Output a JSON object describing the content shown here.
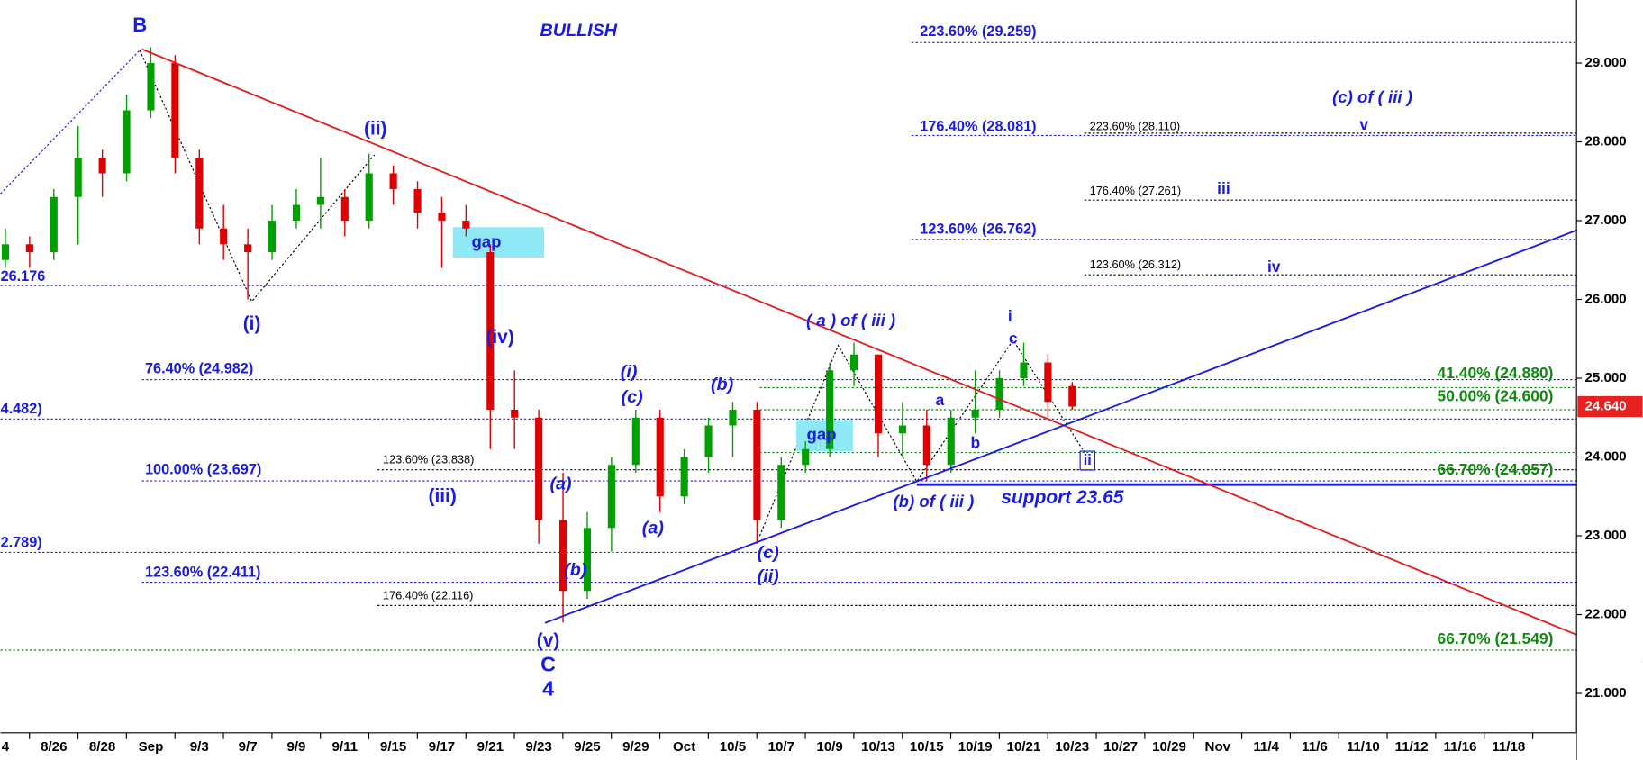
{
  "chart_data": {
    "type": "candlestick",
    "title": "BULLISH",
    "xticks": [
      {
        "value": 0,
        "label": "4"
      },
      {
        "value": 2,
        "label": "8/26"
      },
      {
        "value": 4,
        "label": "8/28"
      },
      {
        "value": 6,
        "label": "Sep"
      },
      {
        "value": 8,
        "label": "9/3"
      },
      {
        "value": 10,
        "label": "9/7"
      },
      {
        "value": 12,
        "label": "9/9"
      },
      {
        "value": 14,
        "label": "9/11"
      },
      {
        "value": 16,
        "label": "9/15"
      },
      {
        "value": 18,
        "label": "9/17"
      },
      {
        "value": 20,
        "label": "9/21"
      },
      {
        "value": 22,
        "label": "9/23"
      },
      {
        "value": 24,
        "label": "9/25"
      },
      {
        "value": 26,
        "label": "9/29"
      },
      {
        "value": 28,
        "label": "Oct"
      },
      {
        "value": 30,
        "label": "10/5"
      },
      {
        "value": 32,
        "label": "10/7"
      },
      {
        "value": 34,
        "label": "10/9"
      },
      {
        "value": 36,
        "label": "10/13"
      },
      {
        "value": 38,
        "label": "10/15"
      },
      {
        "value": 40,
        "label": "10/19"
      },
      {
        "value": 42,
        "label": "10/21"
      },
      {
        "value": 44,
        "label": "10/23"
      },
      {
        "value": 46,
        "label": "10/27"
      },
      {
        "value": 48,
        "label": "10/29"
      },
      {
        "value": 50,
        "label": "Nov"
      },
      {
        "value": 52,
        "label": "11/4"
      },
      {
        "value": 54,
        "label": "11/6"
      },
      {
        "value": 56,
        "label": "11/10"
      },
      {
        "value": 58,
        "label": "11/12"
      },
      {
        "value": 60,
        "label": "11/16"
      },
      {
        "value": 62,
        "label": "11/18"
      }
    ],
    "xlim": [
      -0.2,
      64.8
    ],
    "ylim": [
      20.5,
      29.8
    ],
    "yticks": [
      {
        "value": 21,
        "label": "21.000"
      },
      {
        "value": 22,
        "label": "22.000"
      },
      {
        "value": 23,
        "label": "23.000"
      },
      {
        "value": 24,
        "label": "24.000"
      },
      {
        "value": 25,
        "label": "25.000"
      },
      {
        "value": 26,
        "label": "26.000"
      },
      {
        "value": 27,
        "label": "27.000"
      },
      {
        "value": 28,
        "label": "28.000"
      },
      {
        "value": 29,
        "label": "29.000"
      }
    ],
    "up_color": "#00a000",
    "down_color": "#e00000",
    "ohlc": {
      "open": [
        26.5,
        26.7,
        26.6,
        27.3,
        27.8,
        27.6,
        28.4,
        29.0,
        27.8,
        26.9,
        26.7,
        26.6,
        27.0,
        27.2,
        27.3,
        27.0,
        27.6,
        27.4,
        27.1,
        27.0,
        26.6,
        24.6,
        24.5,
        23.2,
        22.3,
        23.1,
        23.9,
        24.5,
        23.5,
        24.0,
        24.4,
        24.6,
        23.2,
        23.9,
        24.1,
        25.1,
        25.3,
        24.3,
        24.4,
        23.9,
        24.5,
        24.6,
        25.0,
        25.2,
        24.9
      ],
      "high": [
        26.9,
        26.8,
        27.4,
        28.2,
        27.9,
        28.6,
        29.2,
        29.1,
        27.9,
        27.2,
        26.9,
        27.2,
        27.4,
        27.8,
        27.4,
        27.85,
        27.7,
        27.5,
        27.3,
        27.2,
        26.7,
        25.1,
        24.6,
        23.8,
        23.3,
        24.0,
        24.6,
        24.6,
        24.1,
        24.5,
        24.7,
        24.7,
        24.0,
        24.2,
        25.2,
        25.45,
        25.3,
        24.7,
        24.6,
        24.6,
        25.1,
        25.1,
        25.45,
        25.3,
        24.95
      ],
      "low": [
        26.4,
        26.4,
        26.5,
        26.7,
        27.3,
        27.5,
        28.3,
        27.6,
        26.7,
        26.5,
        26.0,
        26.5,
        26.9,
        26.9,
        26.8,
        26.9,
        27.2,
        26.9,
        26.4,
        26.8,
        24.1,
        24.1,
        22.9,
        21.9,
        22.2,
        22.8,
        23.8,
        23.3,
        23.4,
        23.8,
        24.0,
        22.9,
        23.1,
        23.8,
        24.0,
        24.9,
        24.0,
        24.0,
        23.7,
        23.8,
        24.3,
        24.5,
        24.9,
        24.5,
        24.6
      ],
      "close": [
        26.7,
        26.6,
        27.3,
        27.8,
        27.6,
        28.4,
        29.0,
        27.8,
        26.9,
        26.7,
        26.6,
        27.0,
        27.2,
        27.3,
        27.0,
        27.6,
        27.4,
        27.1,
        27.0,
        26.9,
        24.6,
        24.5,
        23.2,
        22.3,
        23.1,
        23.9,
        24.5,
        23.5,
        24.0,
        24.4,
        24.6,
        23.2,
        23.9,
        24.1,
        25.1,
        25.3,
        24.3,
        24.4,
        23.9,
        24.5,
        24.6,
        25.0,
        25.2,
        24.7,
        24.64
      ]
    },
    "levels": [
      {
        "label": "223.60% (29.259)",
        "value": 29.259,
        "color": "#1a1ae6"
      },
      {
        "label": "176.40% (28.081)",
        "value": 28.081,
        "color": "#1a1ae6"
      },
      {
        "label": "223.60% (28.110)",
        "value": 28.11,
        "color": "#000000"
      },
      {
        "label": "176.40% (27.261)",
        "value": 27.261,
        "color": "#000000"
      },
      {
        "label": "123.60% (26.762)",
        "value": 26.762,
        "color": "#1a1ae6"
      },
      {
        "label": "123.60% (26.312)",
        "value": 26.312,
        "color": "#000000"
      },
      {
        "label": "26.176",
        "value": 26.176,
        "color": "#1a1ae6"
      },
      {
        "label": "76.40% (24.982)",
        "value": 24.982,
        "color": "#1a1ae6"
      },
      {
        "label": "41.40% (24.880)",
        "value": 24.88,
        "color": "#118811"
      },
      {
        "label": "4.482)",
        "value": 24.482,
        "color": "#1a1ae6"
      },
      {
        "label": "50.00% (24.600)",
        "value": 24.6,
        "color": "#118811"
      },
      {
        "label": "66.70% (24.057)",
        "value": 24.057,
        "color": "#118811"
      },
      {
        "label": "123.60% (23.838)",
        "value": 23.838,
        "color": "#000000"
      },
      {
        "label": "100.00% (23.697)",
        "value": 23.697,
        "color": "#1a1ae6"
      },
      {
        "label": "2.789)",
        "value": 22.789,
        "color": "#1a1ae6"
      },
      {
        "label": "123.60% (22.411)",
        "value": 22.411,
        "color": "#1a1ae6"
      },
      {
        "label": "176.40% (22.116)",
        "value": 22.116,
        "color": "#000000"
      },
      {
        "label": "66.70% (21.549)",
        "value": 21.549,
        "color": "#118811"
      }
    ],
    "support": {
      "label": "support 23.65",
      "value": 23.65
    },
    "last_price": {
      "value": 24.64,
      "label": "24.640"
    },
    "annotations": [
      "B",
      "(ii)",
      "(i)",
      "(iv)",
      "(iii)",
      "(v)",
      "C",
      "4",
      "(a)",
      "(b)",
      "(i)",
      "(c)",
      "(a)",
      "(b)",
      "(c)",
      "(ii)",
      "( a ) of ( iii )",
      "(b) of ( iii )",
      "a",
      "b",
      "i",
      "c",
      "ii",
      "(c) of ( iii )",
      "v",
      "iii",
      "iv",
      "gap",
      "gap"
    ]
  }
}
